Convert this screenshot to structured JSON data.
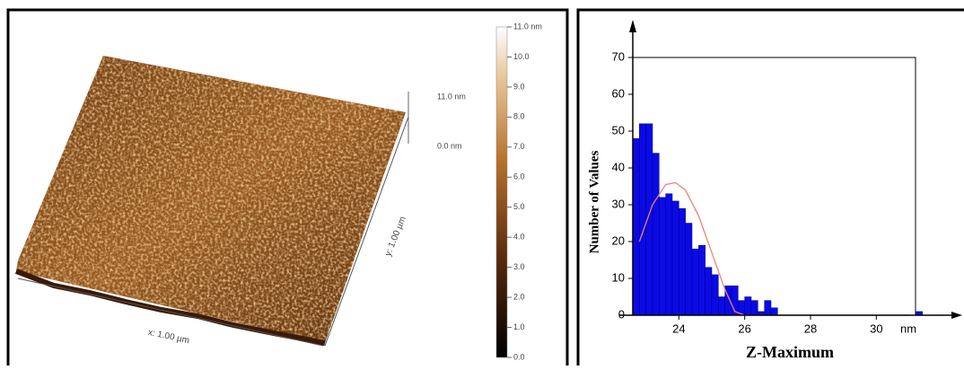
{
  "afm": {
    "colorbar_ticks": [
      {
        "value": 0,
        "label": "0.0"
      },
      {
        "value": 1,
        "label": "1.0"
      },
      {
        "value": 2,
        "label": "2.0"
      },
      {
        "value": 3,
        "label": "3.0"
      },
      {
        "value": 4,
        "label": "4.0"
      },
      {
        "value": 5,
        "label": "5.0"
      },
      {
        "value": 6,
        "label": "6.0"
      },
      {
        "value": 7,
        "label": "7.0"
      },
      {
        "value": 8,
        "label": "8.0"
      },
      {
        "value": 9,
        "label": "9.0"
      },
      {
        "value": 10,
        "label": "10.0"
      },
      {
        "value": 11,
        "label": "11.0 nm"
      }
    ],
    "scale_top": "11.0 nm",
    "scale_bottom": "0.0 nm",
    "x_label": "x: 1.00 µm",
    "y_label": "y: 1.00 µm"
  },
  "chart_data": {
    "type": "histogram",
    "x_label": "Z-Maximum",
    "y_label": "Number of Values",
    "x_unit": "nm",
    "bins": [
      22.6,
      22.8,
      23,
      23.2,
      23.4,
      23.6,
      23.8,
      24,
      24.2,
      24.4,
      24.6,
      24.8,
      25,
      25.2,
      25.4,
      25.6,
      25.8,
      26,
      26.2,
      26.4,
      26.6,
      26.8,
      27,
      27.2,
      27.4,
      27.6,
      27.8,
      28,
      28.2,
      28.4,
      28.6,
      28.8,
      29,
      29.2,
      29.4,
      29.6,
      29.8,
      30,
      30.2,
      30.4,
      30.6,
      30.8,
      31,
      31.2,
      31.4
    ],
    "counts": [
      48,
      52,
      52,
      44,
      32,
      33,
      31,
      29,
      25,
      18,
      19,
      13,
      11,
      5,
      8,
      8,
      4,
      5,
      4,
      1,
      4,
      2,
      0,
      0,
      0,
      0,
      0,
      0,
      0,
      0,
      0,
      0,
      0,
      0,
      0,
      0,
      0,
      0,
      0,
      0,
      0,
      0,
      0,
      1
    ],
    "color": "#0a0ae6",
    "curve": {
      "color": "#f08080",
      "x": [
        22.8,
        23.2,
        23.6,
        23.9,
        24.2,
        24.6,
        25,
        25.4,
        25.7,
        26,
        31
      ],
      "values": [
        20,
        30,
        35.5,
        36,
        34,
        27,
        17,
        7,
        1,
        0,
        0
      ]
    },
    "xlim": [
      22.6,
      32.5
    ],
    "ylim": [
      0,
      70
    ],
    "xticks": [
      24,
      26,
      28,
      30
    ],
    "yticks": [
      0,
      10,
      20,
      30,
      40,
      50,
      60,
      70
    ]
  }
}
